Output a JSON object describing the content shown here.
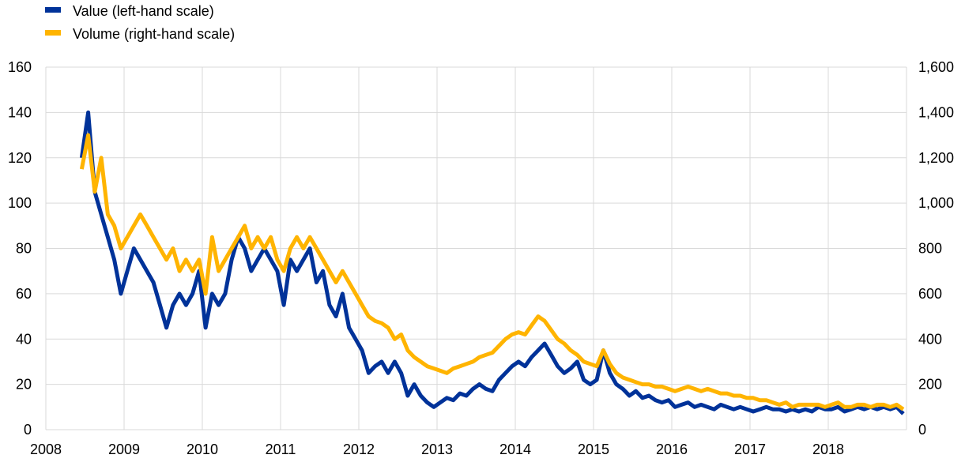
{
  "chart_data": {
    "type": "line",
    "legend_position": "top-left",
    "grid": true,
    "x_ticks": [
      "2008",
      "2009",
      "2010",
      "2011",
      "2012",
      "2013",
      "2014",
      "2015",
      "2016",
      "2017",
      "2018"
    ],
    "xlim": [
      "2008-01",
      "2019-01"
    ],
    "y_left": {
      "lim": [
        0,
        160
      ],
      "ticks": [
        "0",
        "20",
        "40",
        "60",
        "80",
        "100",
        "120",
        "140",
        "160"
      ]
    },
    "y_right": {
      "lim": [
        0,
        1600
      ],
      "ticks": [
        "0",
        "200",
        "400",
        "600",
        "800",
        "1,000",
        "1,200",
        "1,400",
        "1,600"
      ]
    },
    "start_month": "2008-06",
    "series": [
      {
        "name": "Value (left-hand scale)",
        "axis": "left",
        "color": "#003299",
        "values": [
          120,
          140,
          105,
          95,
          85,
          75,
          60,
          70,
          80,
          75,
          70,
          65,
          55,
          45,
          55,
          60,
          55,
          60,
          70,
          45,
          60,
          55,
          60,
          75,
          85,
          80,
          70,
          75,
          80,
          75,
          70,
          55,
          75,
          70,
          75,
          80,
          65,
          70,
          55,
          50,
          60,
          45,
          40,
          35,
          25,
          28,
          30,
          25,
          30,
          25,
          15,
          20,
          15,
          12,
          10,
          12,
          14,
          13,
          16,
          15,
          18,
          20,
          18,
          17,
          22,
          25,
          28,
          30,
          28,
          32,
          35,
          38,
          33,
          28,
          25,
          27,
          30,
          22,
          20,
          22,
          35,
          25,
          20,
          18,
          15,
          17,
          14,
          15,
          13,
          12,
          13,
          10,
          11,
          12,
          10,
          11,
          10,
          9,
          11,
          10,
          9,
          10,
          9,
          8,
          9,
          10,
          9,
          9,
          8,
          9,
          8,
          9,
          8,
          10,
          9,
          9,
          10,
          8,
          9,
          10,
          9,
          10,
          9,
          10,
          9,
          10,
          7
        ]
      },
      {
        "name": "Volume (right-hand scale)",
        "axis": "right",
        "color": "#ffb400",
        "values": [
          1150,
          1300,
          1050,
          1200,
          950,
          900,
          800,
          850,
          900,
          950,
          900,
          850,
          800,
          750,
          800,
          700,
          750,
          700,
          750,
          600,
          850,
          700,
          750,
          800,
          850,
          900,
          800,
          850,
          800,
          850,
          750,
          700,
          800,
          850,
          800,
          850,
          800,
          750,
          700,
          650,
          700,
          650,
          600,
          550,
          500,
          480,
          470,
          450,
          400,
          420,
          350,
          320,
          300,
          280,
          270,
          260,
          250,
          270,
          280,
          290,
          300,
          320,
          330,
          340,
          370,
          400,
          420,
          430,
          420,
          460,
          500,
          480,
          440,
          400,
          380,
          350,
          330,
          300,
          290,
          280,
          350,
          290,
          250,
          230,
          220,
          210,
          200,
          200,
          190,
          190,
          180,
          170,
          180,
          190,
          180,
          170,
          180,
          170,
          160,
          160,
          150,
          150,
          140,
          140,
          130,
          130,
          120,
          110,
          120,
          100,
          110,
          110,
          110,
          110,
          100,
          110,
          120,
          100,
          100,
          110,
          110,
          100,
          110,
          110,
          100,
          110,
          90
        ]
      }
    ]
  }
}
